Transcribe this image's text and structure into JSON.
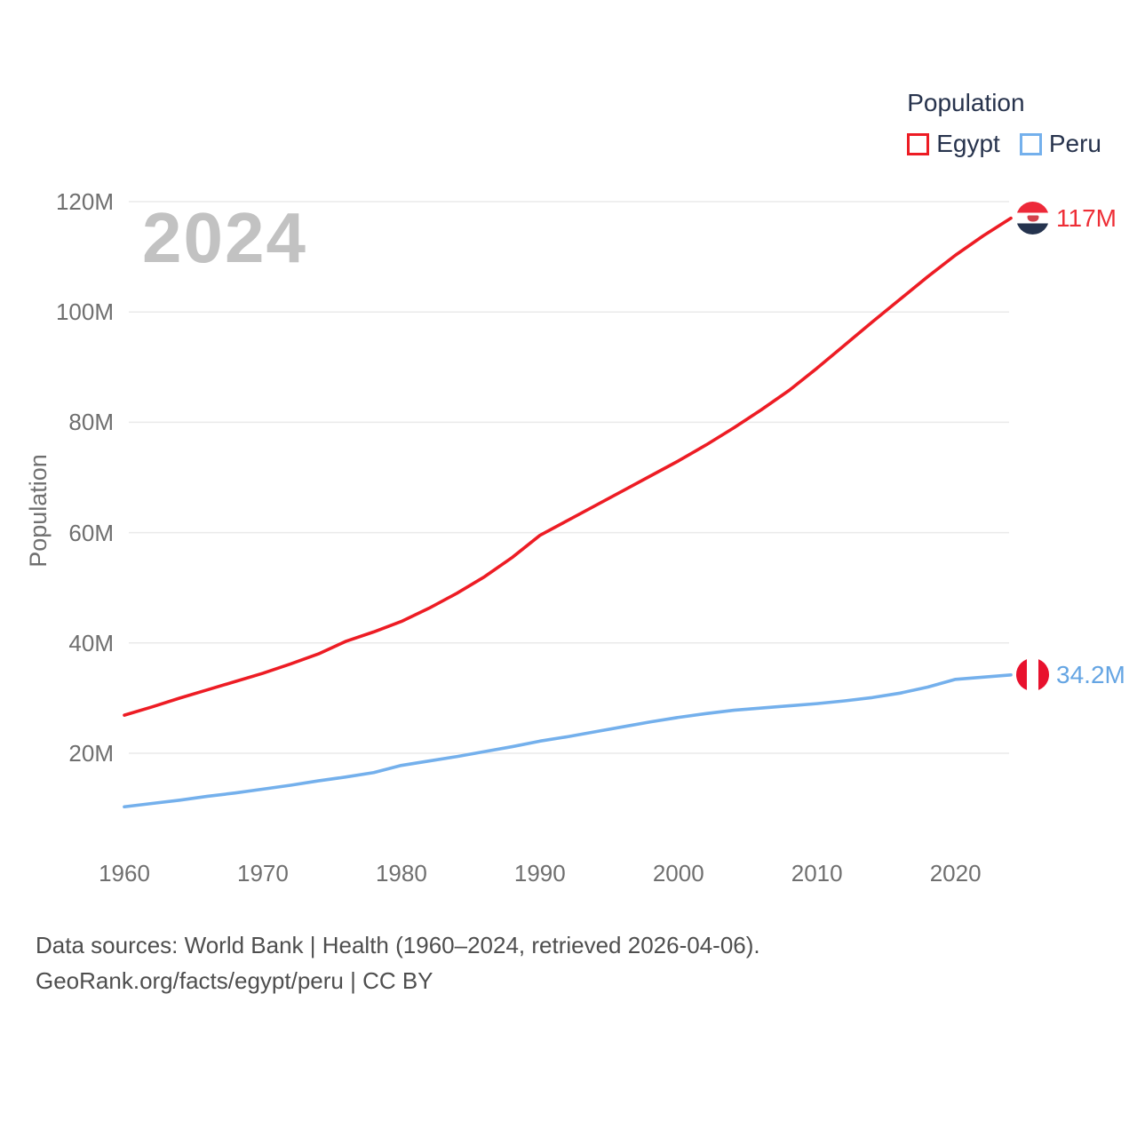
{
  "legend": {
    "title": "Population",
    "items": [
      {
        "label": "Egypt",
        "color": "#ed1c24"
      },
      {
        "label": "Peru",
        "color": "#74b0ec"
      }
    ]
  },
  "watermark": "2024",
  "y_axis_title": "Population",
  "chart_data": {
    "type": "line",
    "title": "Population",
    "ylabel": "Population",
    "grid": "horizontal",
    "legend_position": "top-right",
    "xlim": [
      1960,
      2024
    ],
    "ylim": [
      8,
      122
    ],
    "xticks": [
      1960,
      1970,
      1980,
      1990,
      2000,
      2010,
      2020
    ],
    "yticks": [
      {
        "value": 20,
        "label": "20M"
      },
      {
        "value": 40,
        "label": "40M"
      },
      {
        "value": 60,
        "label": "60M"
      },
      {
        "value": 80,
        "label": "80M"
      },
      {
        "value": 100,
        "label": "100M"
      },
      {
        "value": 120,
        "label": "120M"
      }
    ],
    "x": [
      1960,
      1962,
      1964,
      1966,
      1968,
      1970,
      1972,
      1974,
      1976,
      1978,
      1980,
      1982,
      1984,
      1986,
      1988,
      1990,
      1992,
      1994,
      1996,
      1998,
      2000,
      2002,
      2004,
      2006,
      2008,
      2010,
      2012,
      2014,
      2016,
      2018,
      2020,
      2022,
      2024
    ],
    "series": [
      {
        "name": "Egypt",
        "color": "#ed1c24",
        "label_color": "#ee2e36",
        "flag": "egypt",
        "end_label": "117M",
        "values": [
          26.9,
          28.4,
          30.0,
          31.5,
          33.0,
          34.5,
          36.2,
          38.0,
          40.3,
          42.0,
          43.9,
          46.3,
          49.0,
          52.0,
          55.5,
          59.5,
          62.2,
          64.9,
          67.6,
          70.3,
          73.0,
          75.9,
          79.0,
          82.3,
          85.8,
          89.8,
          94.0,
          98.2,
          102.3,
          106.4,
          110.3,
          113.8,
          117.0
        ]
      },
      {
        "name": "Peru",
        "color": "#74b0ec",
        "label_color": "#65a5e3",
        "flag": "peru",
        "end_label": "34.2M",
        "values": [
          10.3,
          10.9,
          11.5,
          12.2,
          12.8,
          13.5,
          14.2,
          15.0,
          15.7,
          16.5,
          17.8,
          18.6,
          19.4,
          20.3,
          21.2,
          22.2,
          23.0,
          23.9,
          24.8,
          25.7,
          26.5,
          27.2,
          27.8,
          28.2,
          28.6,
          29.0,
          29.5,
          30.1,
          30.9,
          32.0,
          33.4,
          33.8,
          34.2
        ]
      }
    ]
  },
  "footer": {
    "line1": "Data sources: World Bank | Health (1960–2024, retrieved 2026-04-06).",
    "line2": "GeoRank.org/facts/egypt/peru | CC BY"
  }
}
